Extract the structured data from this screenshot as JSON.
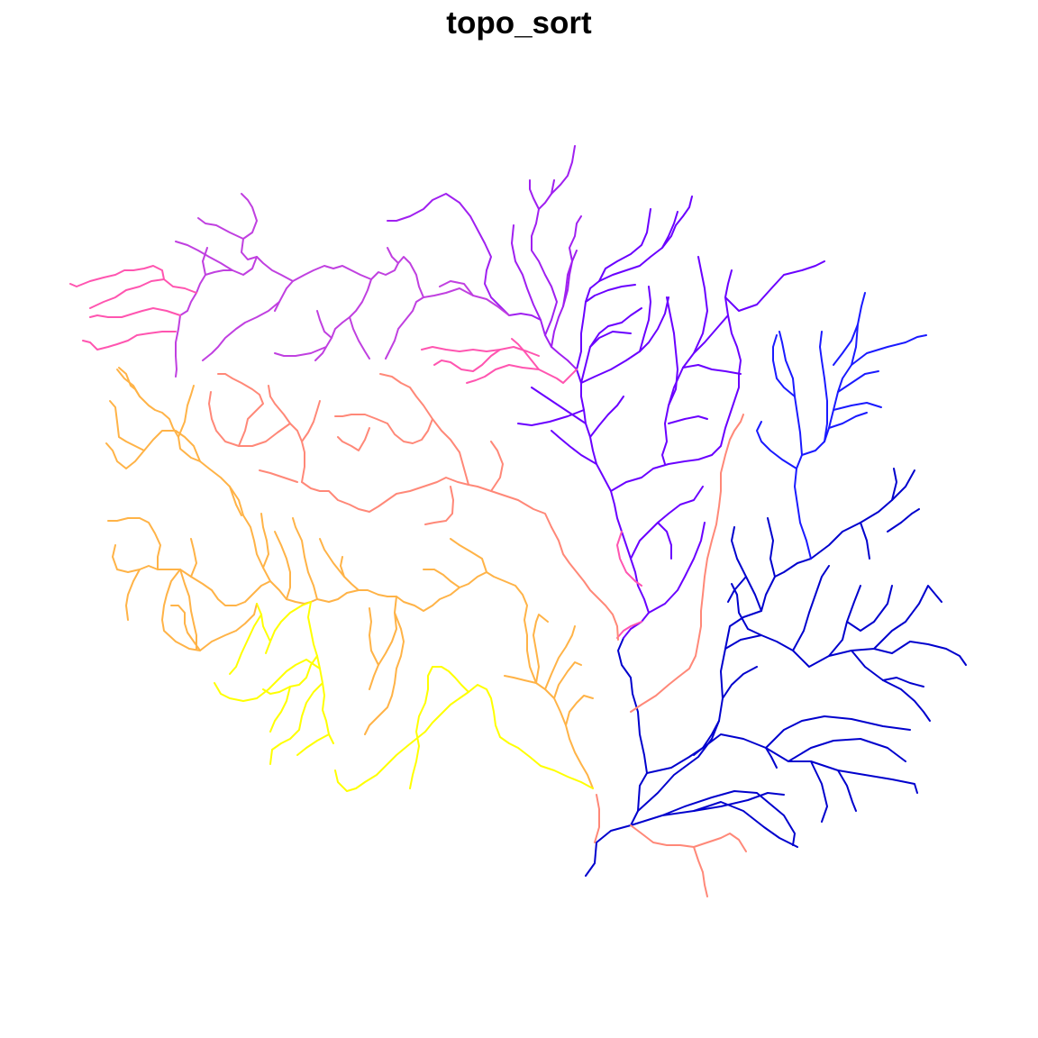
{
  "map": {
    "title": "topo_sort",
    "palette": {
      "dark_blue": "#0000CD",
      "blue": "#1A1AFF",
      "violet": "#6A00FF",
      "purple": "#A020F0",
      "magenta": "#C040E0",
      "pink": "#FF55B0",
      "salmon": "#FF8878",
      "orange": "#FFB347",
      "yellow": "#FFFF00"
    }
  }
}
